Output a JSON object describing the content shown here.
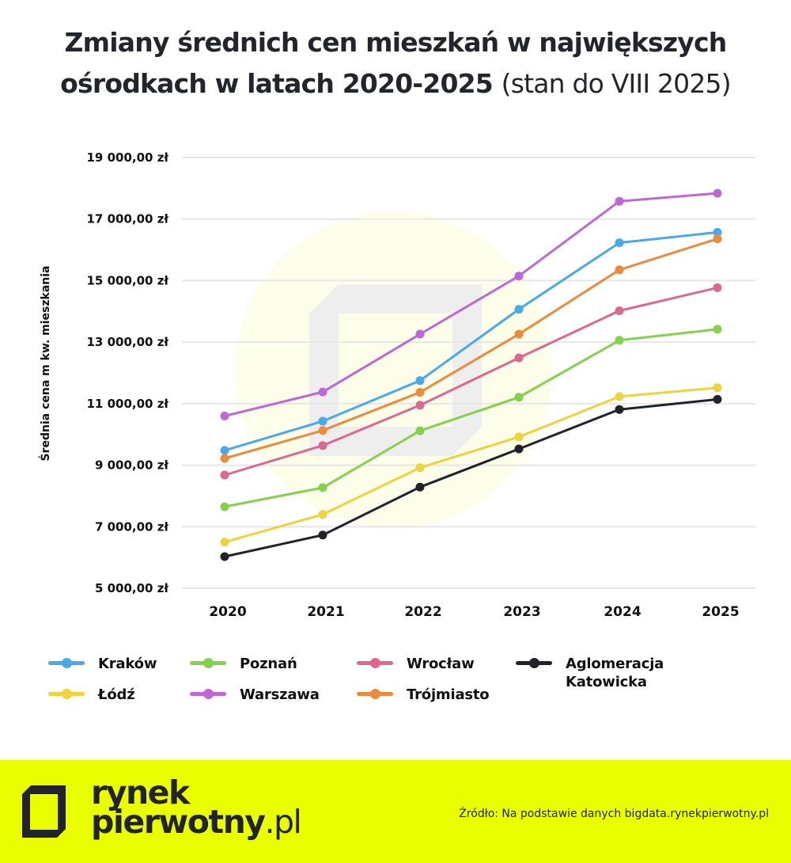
{
  "title": {
    "line1": "Zmiany średnich cen mieszkań w największych",
    "line2_bold": "ośrodkach w latach 2020-2025",
    "line2_light": "(stan do VIII 2025)"
  },
  "colors": {
    "Kraków": "#4aa9ea",
    "Poznań": "#84d14d",
    "Wrocław": "#de6791",
    "Aglomeracja Katowicka": "#22222c",
    "Łódź": "#efd33c",
    "Warszawa": "#be67d6",
    "Trójmiasto": "#ee8a3c",
    "footer_bg": "#e9ff00",
    "watermark_circle": "#fdfee9",
    "watermark_logo": "#eeeeee",
    "grid": "#e6e6e6"
  },
  "chart_data": {
    "type": "line",
    "title": "Zmiany średnich cen mieszkań w największych ośrodkach w latach 2020-2025 (stan do VIII 2025)",
    "xlabel": "",
    "ylabel": "Średnia cena m kw. mieszkania",
    "x": [
      "2020",
      "2021",
      "2022",
      "2023",
      "2024",
      "2025"
    ],
    "ylim": [
      5000,
      19000
    ],
    "yticks": [
      5000,
      7000,
      9000,
      11000,
      13000,
      15000,
      17000,
      19000
    ],
    "ytick_labels": [
      "5 000,00 zł",
      "7 000,00 zł",
      "9 000,00 zł",
      "11 000,00 zł",
      "13 000,00 zł",
      "15 000,00 zł",
      "17 000,00 zł",
      "19 000,00 zł"
    ],
    "grid": true,
    "legend_position": "bottom",
    "series": [
      {
        "name": "Kraków",
        "values": [
          9480,
          10430,
          11750,
          14070,
          16230,
          16570
        ]
      },
      {
        "name": "Poznań",
        "values": [
          7650,
          8270,
          10120,
          11210,
          13060,
          13420
        ]
      },
      {
        "name": "Wrocław",
        "values": [
          8680,
          9640,
          10950,
          12490,
          14020,
          14770
        ]
      },
      {
        "name": "Aglomeracja Katowicka",
        "values": [
          6030,
          6730,
          8290,
          9530,
          10810,
          11140
        ]
      },
      {
        "name": "Łódź",
        "values": [
          6500,
          7400,
          8920,
          9920,
          11230,
          11520
        ]
      },
      {
        "name": "Warszawa",
        "values": [
          10600,
          11380,
          13260,
          15150,
          17580,
          17840
        ]
      },
      {
        "name": "Trójmiasto",
        "values": [
          9220,
          10130,
          11370,
          13260,
          15350,
          16360
        ]
      }
    ]
  },
  "legend": [
    {
      "label": "Kraków",
      "series": "Kraków"
    },
    {
      "label": "Poznań",
      "series": "Poznań"
    },
    {
      "label": "Wrocław",
      "series": "Wrocław"
    },
    {
      "label": "Aglomeracja Katowicka",
      "line1": "Aglomeracja",
      "line2": "Katowicka",
      "series": "Aglomeracja Katowicka"
    },
    {
      "label": "Łódź",
      "series": "Łódź"
    },
    {
      "label": "Warszawa",
      "series": "Warszawa"
    },
    {
      "label": "Trójmiasto",
      "series": "Trójmiasto"
    }
  ],
  "footer": {
    "brand_line1": "rynek",
    "brand_line2": "pierwotny",
    "brand_tld": ".pl",
    "source": "Źródło: Na podstawie danych bigdata.rynekpierwotny.pl"
  }
}
